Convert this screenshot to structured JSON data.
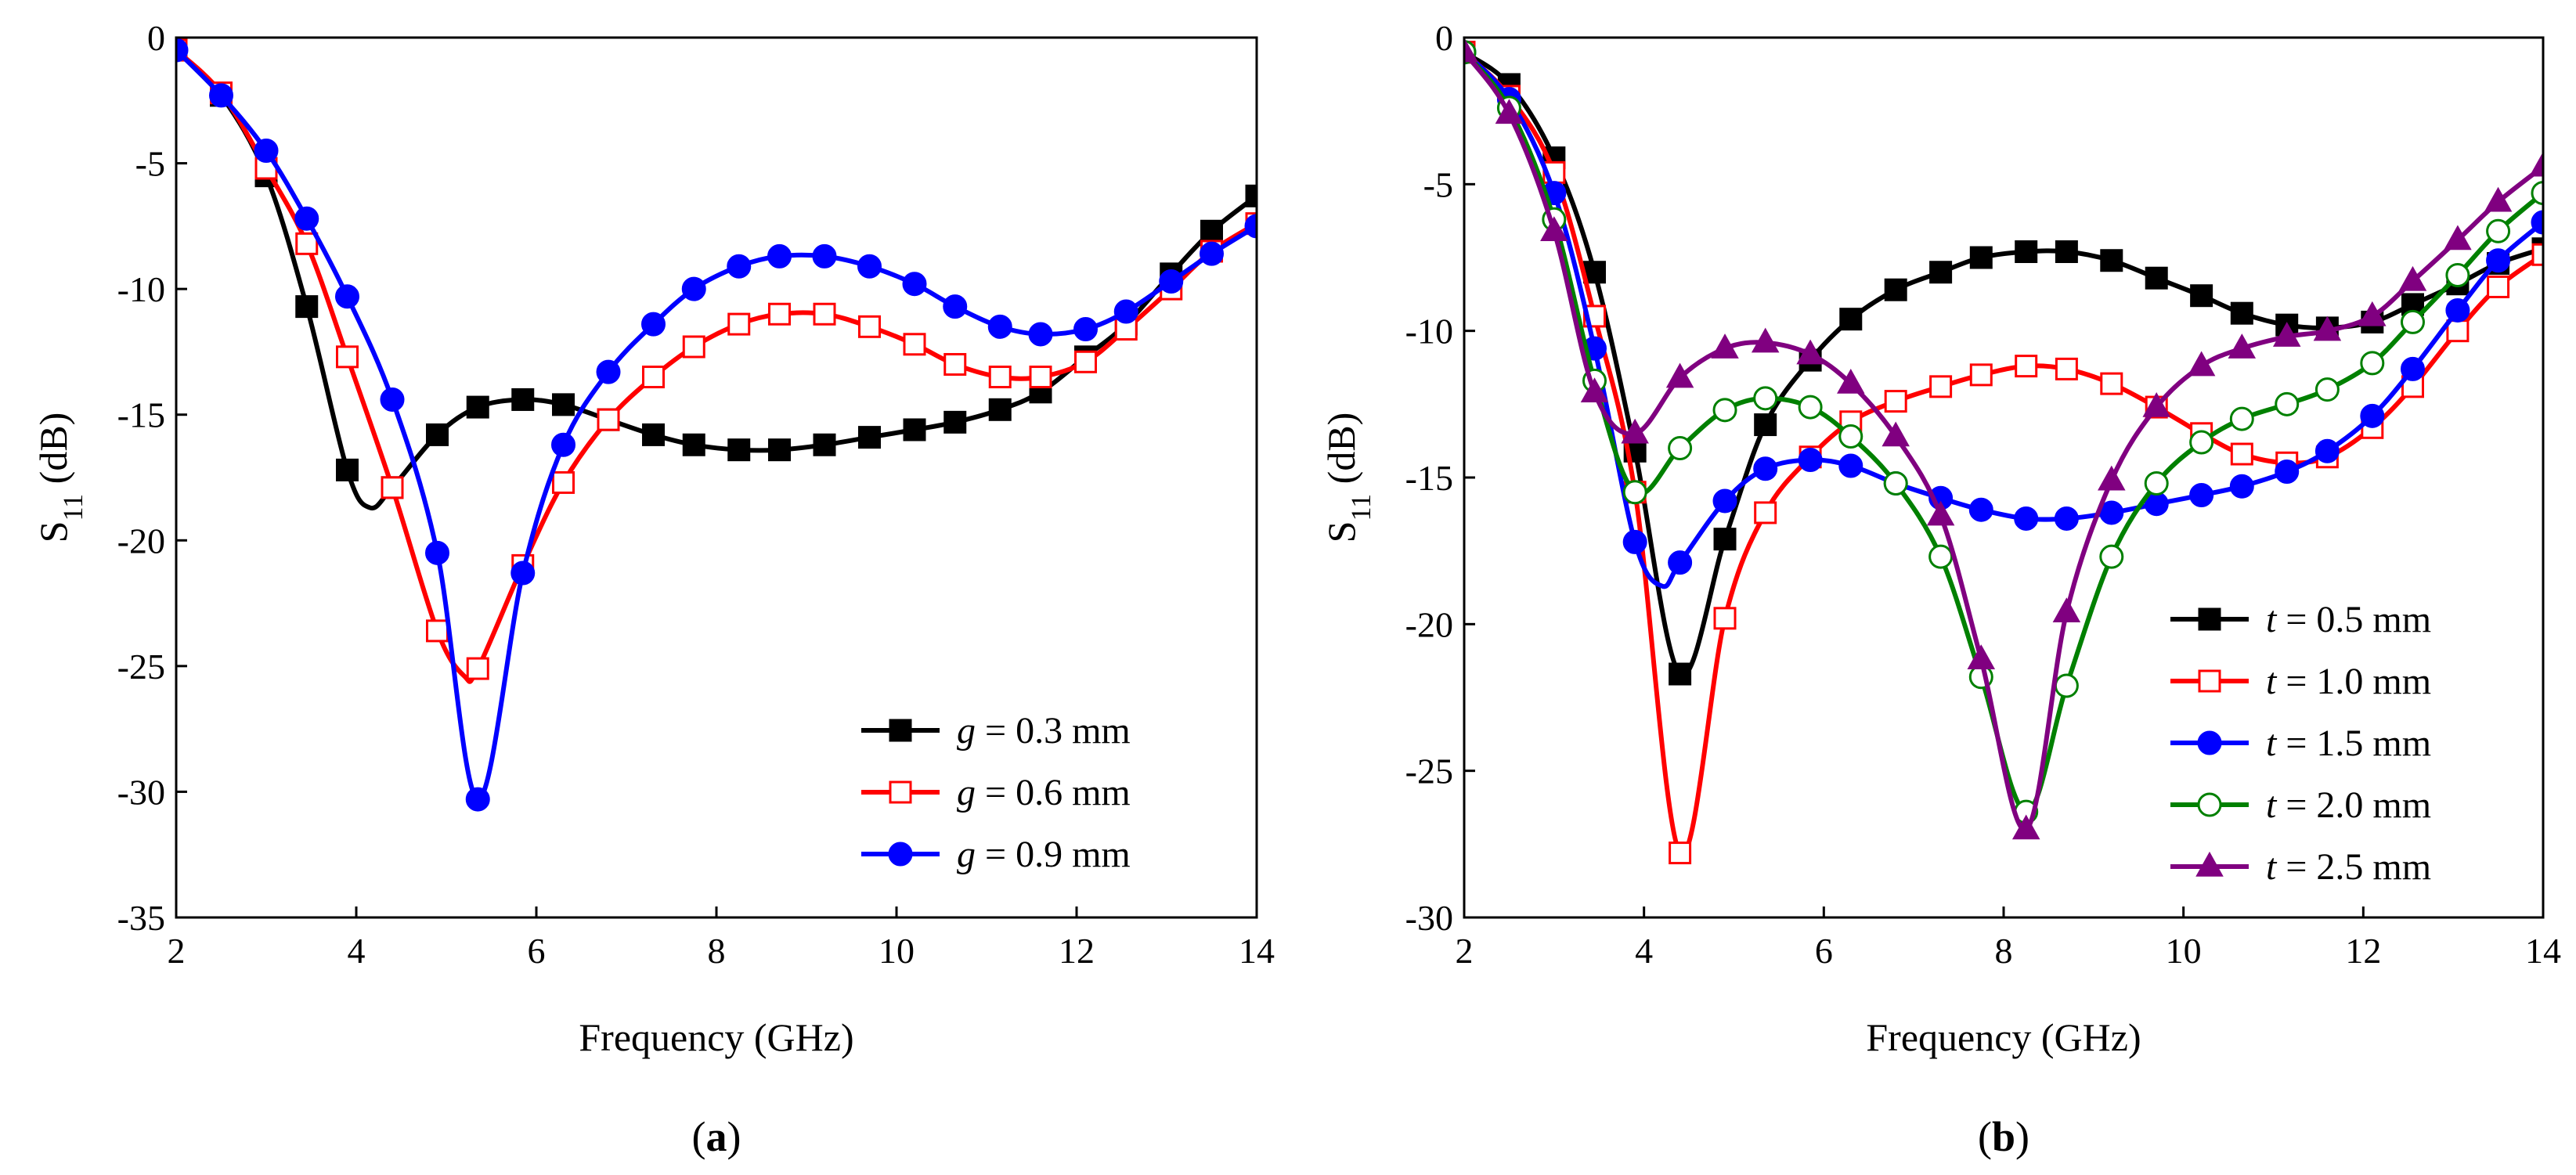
{
  "chart_data": [
    {
      "type": "line",
      "panel_label": "(a)",
      "panel_letter": "a",
      "xlabel": "Frequency (GHz)",
      "ylabel": "S11 (dB)",
      "ylabel_main": "S",
      "ylabel_sub": "11",
      "ylabel_rest": " (dB)",
      "xlim": [
        2,
        14
      ],
      "ylim": [
        -35,
        0
      ],
      "xticks": [
        2,
        4,
        6,
        8,
        10,
        12,
        14
      ],
      "yticks": [
        0,
        -5,
        -10,
        -15,
        -20,
        -25,
        -30,
        -35
      ],
      "legend_position": "bottom-right",
      "series": [
        {
          "name": "g = 0.3 mm",
          "var": "g",
          "value_text": " = 0.3 mm",
          "color": "#000000",
          "marker": "square-filled",
          "x": [
            2.0,
            2.5,
            3.0,
            3.45,
            3.9,
            4.15,
            4.4,
            4.9,
            5.35,
            5.85,
            6.3,
            6.8,
            7.3,
            7.75,
            8.25,
            8.7,
            9.2,
            9.7,
            10.2,
            10.65,
            11.15,
            11.6,
            12.1,
            12.55,
            13.05,
            13.5,
            14.0
          ],
          "y": [
            -0.5,
            -2.3,
            -5.5,
            -10.7,
            -17.2,
            -18.7,
            -17.9,
            -15.8,
            -14.7,
            -14.4,
            -14.6,
            -15.2,
            -15.8,
            -16.2,
            -16.4,
            -16.4,
            -16.2,
            -15.9,
            -15.6,
            -15.3,
            -14.8,
            -14.1,
            -12.7,
            -11.4,
            -9.4,
            -7.7,
            -6.3
          ],
          "marker_x": [
            2.0,
            2.5,
            3.0,
            3.45,
            3.9,
            4.4,
            4.9,
            5.35,
            5.85,
            6.3,
            6.8,
            7.3,
            7.75,
            8.25,
            8.7,
            9.2,
            9.7,
            10.2,
            10.65,
            11.15,
            11.6,
            12.1,
            12.55,
            13.05,
            13.5,
            14.0
          ],
          "marker_y": [
            -0.5,
            -2.3,
            -5.5,
            -10.7,
            -17.2,
            -17.9,
            -15.8,
            -14.7,
            -14.4,
            -14.6,
            -15.2,
            -15.8,
            -16.2,
            -16.4,
            -16.4,
            -16.2,
            -15.9,
            -15.6,
            -15.3,
            -14.8,
            -14.1,
            -12.7,
            -11.4,
            -9.4,
            -7.7,
            -6.3
          ]
        },
        {
          "name": "g = 0.6 mm",
          "var": "g",
          "value_text": " = 0.6 mm",
          "color": "#ff0000",
          "marker": "square-open",
          "x": [
            2.0,
            2.5,
            3.0,
            3.45,
            3.9,
            4.4,
            4.9,
            5.2,
            5.35,
            5.85,
            6.3,
            6.8,
            7.3,
            7.75,
            8.25,
            8.7,
            9.2,
            9.7,
            10.2,
            10.65,
            11.15,
            11.6,
            12.1,
            12.55,
            13.05,
            13.5,
            14.0
          ],
          "y": [
            -0.5,
            -2.2,
            -5.2,
            -8.2,
            -12.7,
            -17.9,
            -23.6,
            -25.4,
            -25.1,
            -21.0,
            -17.7,
            -15.2,
            -13.5,
            -12.3,
            -11.4,
            -11.0,
            -11.0,
            -11.5,
            -12.2,
            -13.0,
            -13.5,
            -13.5,
            -12.9,
            -11.6,
            -10.0,
            -8.5,
            -7.4
          ],
          "marker_x": [
            2.0,
            2.5,
            3.0,
            3.45,
            3.9,
            4.4,
            4.9,
            5.35,
            5.85,
            6.3,
            6.8,
            7.3,
            7.75,
            8.25,
            8.7,
            9.2,
            9.7,
            10.2,
            10.65,
            11.15,
            11.6,
            12.1,
            12.55,
            13.05,
            13.5,
            14.0
          ],
          "marker_y": [
            -0.5,
            -2.2,
            -5.2,
            -8.2,
            -12.7,
            -17.9,
            -23.6,
            -25.1,
            -21.0,
            -17.7,
            -15.2,
            -13.5,
            -12.3,
            -11.4,
            -11.0,
            -11.0,
            -11.5,
            -12.2,
            -13.0,
            -13.5,
            -13.5,
            -12.9,
            -11.6,
            -10.0,
            -8.5,
            -7.4
          ]
        },
        {
          "name": "g = 0.9 mm",
          "var": "g",
          "value_text": " = 0.9 mm",
          "color": "#0000ff",
          "marker": "circle-filled",
          "x": [
            2.0,
            2.5,
            3.0,
            3.45,
            3.9,
            4.4,
            4.9,
            5.35,
            5.85,
            6.3,
            6.8,
            7.3,
            7.75,
            8.25,
            8.7,
            9.2,
            9.7,
            10.2,
            10.65,
            11.15,
            11.6,
            12.1,
            12.55,
            13.05,
            13.5,
            14.0
          ],
          "y": [
            -0.5,
            -2.3,
            -4.5,
            -7.2,
            -10.3,
            -14.4,
            -20.5,
            -30.3,
            -21.3,
            -16.2,
            -13.3,
            -11.4,
            -10.0,
            -9.1,
            -8.7,
            -8.7,
            -9.1,
            -9.8,
            -10.7,
            -11.5,
            -11.8,
            -11.6,
            -10.9,
            -9.7,
            -8.6,
            -7.5
          ]
        }
      ]
    },
    {
      "type": "line",
      "panel_label": "(b)",
      "panel_letter": "b",
      "xlabel": "Frequency (GHz)",
      "ylabel": "S11 (dB)",
      "ylabel_main": "S",
      "ylabel_sub": "11",
      "ylabel_rest": " (dB)",
      "xlim": [
        2,
        14
      ],
      "ylim": [
        -30,
        0
      ],
      "xticks": [
        2,
        4,
        6,
        8,
        10,
        12,
        14
      ],
      "yticks": [
        0,
        -5,
        -10,
        -15,
        -20,
        -25,
        -30
      ],
      "legend_position": "bottom-right",
      "series": [
        {
          "name": "t = 0.5 mm",
          "var": "t",
          "value_text": " = 0.5 mm",
          "color": "#000000",
          "marker": "square-filled",
          "x": [
            2.0,
            2.5,
            3.0,
            3.45,
            3.9,
            4.4,
            4.9,
            5.35,
            5.85,
            6.3,
            6.8,
            7.3,
            7.75,
            8.25,
            8.7,
            9.2,
            9.7,
            10.2,
            10.65,
            11.15,
            11.6,
            12.1,
            12.55,
            13.05,
            13.5,
            14.0
          ],
          "y": [
            -0.5,
            -1.6,
            -4.1,
            -8.0,
            -14.1,
            -21.7,
            -17.1,
            -13.2,
            -11.0,
            -9.6,
            -8.6,
            -8.0,
            -7.5,
            -7.3,
            -7.3,
            -7.6,
            -8.2,
            -8.8,
            -9.4,
            -9.8,
            -9.9,
            -9.7,
            -9.1,
            -8.4,
            -7.7,
            -7.2
          ]
        },
        {
          "name": "t = 1.0 mm",
          "var": "t",
          "value_text": " = 1.0 mm",
          "color": "#ff0000",
          "marker": "square-open",
          "x": [
            2.0,
            2.5,
            3.0,
            3.45,
            3.9,
            4.4,
            4.9,
            5.35,
            5.85,
            6.3,
            6.8,
            7.3,
            7.75,
            8.25,
            8.7,
            9.2,
            9.7,
            10.2,
            10.65,
            11.15,
            11.6,
            12.1,
            12.55,
            13.05,
            13.5,
            14.0
          ],
          "y": [
            -0.5,
            -2.0,
            -4.6,
            -9.5,
            -15.5,
            -27.8,
            -19.8,
            -16.2,
            -14.3,
            -13.1,
            -12.4,
            -11.9,
            -11.5,
            -11.2,
            -11.3,
            -11.8,
            -12.6,
            -13.5,
            -14.2,
            -14.5,
            -14.3,
            -13.3,
            -11.9,
            -10.0,
            -8.5,
            -7.4
          ]
        },
        {
          "name": "t = 1.5 mm",
          "var": "t",
          "value_text": " = 1.5 mm",
          "color": "#0000ff",
          "marker": "circle-filled",
          "x": [
            2.0,
            2.5,
            3.0,
            3.45,
            3.9,
            4.2,
            4.4,
            4.9,
            5.35,
            5.85,
            6.3,
            6.8,
            7.3,
            7.75,
            8.25,
            8.7,
            9.2,
            9.7,
            10.2,
            10.65,
            11.15,
            11.6,
            12.1,
            12.55,
            13.05,
            13.5,
            14.0
          ],
          "y": [
            -0.5,
            -2.1,
            -5.3,
            -10.6,
            -17.2,
            -18.7,
            -17.9,
            -15.8,
            -14.7,
            -14.4,
            -14.6,
            -15.2,
            -15.7,
            -16.1,
            -16.4,
            -16.4,
            -16.2,
            -15.9,
            -15.6,
            -15.3,
            -14.8,
            -14.1,
            -12.9,
            -11.3,
            -9.3,
            -7.6,
            -6.3
          ],
          "marker_x": [
            2.0,
            2.5,
            3.0,
            3.45,
            3.9,
            4.4,
            4.9,
            5.35,
            5.85,
            6.3,
            6.8,
            7.3,
            7.75,
            8.25,
            8.7,
            9.2,
            9.7,
            10.2,
            10.65,
            11.15,
            11.6,
            12.1,
            12.55,
            13.05,
            13.5,
            14.0
          ],
          "marker_y": [
            -0.5,
            -2.1,
            -5.3,
            -10.6,
            -17.2,
            -17.9,
            -15.8,
            -14.7,
            -14.4,
            -14.6,
            -15.2,
            -15.7,
            -16.1,
            -16.4,
            -16.4,
            -16.2,
            -15.9,
            -15.6,
            -15.3,
            -14.8,
            -14.1,
            -12.9,
            -11.3,
            -9.3,
            -7.6,
            -6.3
          ]
        },
        {
          "name": "t = 2.0 mm",
          "var": "t",
          "value_text": " = 2.0 mm",
          "color": "#008000",
          "marker": "circle-open",
          "x": [
            2.0,
            2.5,
            3.0,
            3.45,
            3.9,
            4.4,
            4.9,
            5.35,
            5.85,
            6.3,
            6.8,
            7.3,
            7.75,
            8.25,
            8.7,
            9.2,
            9.7,
            10.2,
            10.65,
            11.15,
            11.6,
            12.1,
            12.55,
            13.05,
            13.5,
            14.0
          ],
          "y": [
            -0.5,
            -2.4,
            -6.2,
            -11.7,
            -15.5,
            -14.0,
            -12.7,
            -12.3,
            -12.6,
            -13.6,
            -15.2,
            -17.7,
            -21.8,
            -26.4,
            -22.1,
            -17.7,
            -15.2,
            -13.8,
            -13.0,
            -12.5,
            -12.0,
            -11.1,
            -9.7,
            -8.1,
            -6.6,
            -5.3
          ]
        },
        {
          "name": "t = 2.5 mm",
          "var": "t",
          "value_text": " = 2.5 mm",
          "color": "#800080",
          "marker": "triangle-filled",
          "x": [
            2.0,
            2.5,
            3.0,
            3.45,
            3.9,
            4.4,
            4.9,
            5.35,
            5.85,
            6.3,
            6.8,
            7.3,
            7.75,
            8.25,
            8.7,
            9.2,
            9.7,
            10.2,
            10.65,
            11.15,
            11.6,
            12.1,
            12.55,
            13.05,
            13.5,
            14.0
          ],
          "y": [
            -0.5,
            -2.6,
            -6.6,
            -12.1,
            -13.5,
            -11.6,
            -10.6,
            -10.4,
            -10.8,
            -11.8,
            -13.6,
            -16.3,
            -21.2,
            -27.0,
            -19.6,
            -15.1,
            -12.6,
            -11.2,
            -10.6,
            -10.2,
            -10.0,
            -9.5,
            -8.3,
            -6.9,
            -5.6,
            -4.4
          ]
        }
      ]
    }
  ]
}
